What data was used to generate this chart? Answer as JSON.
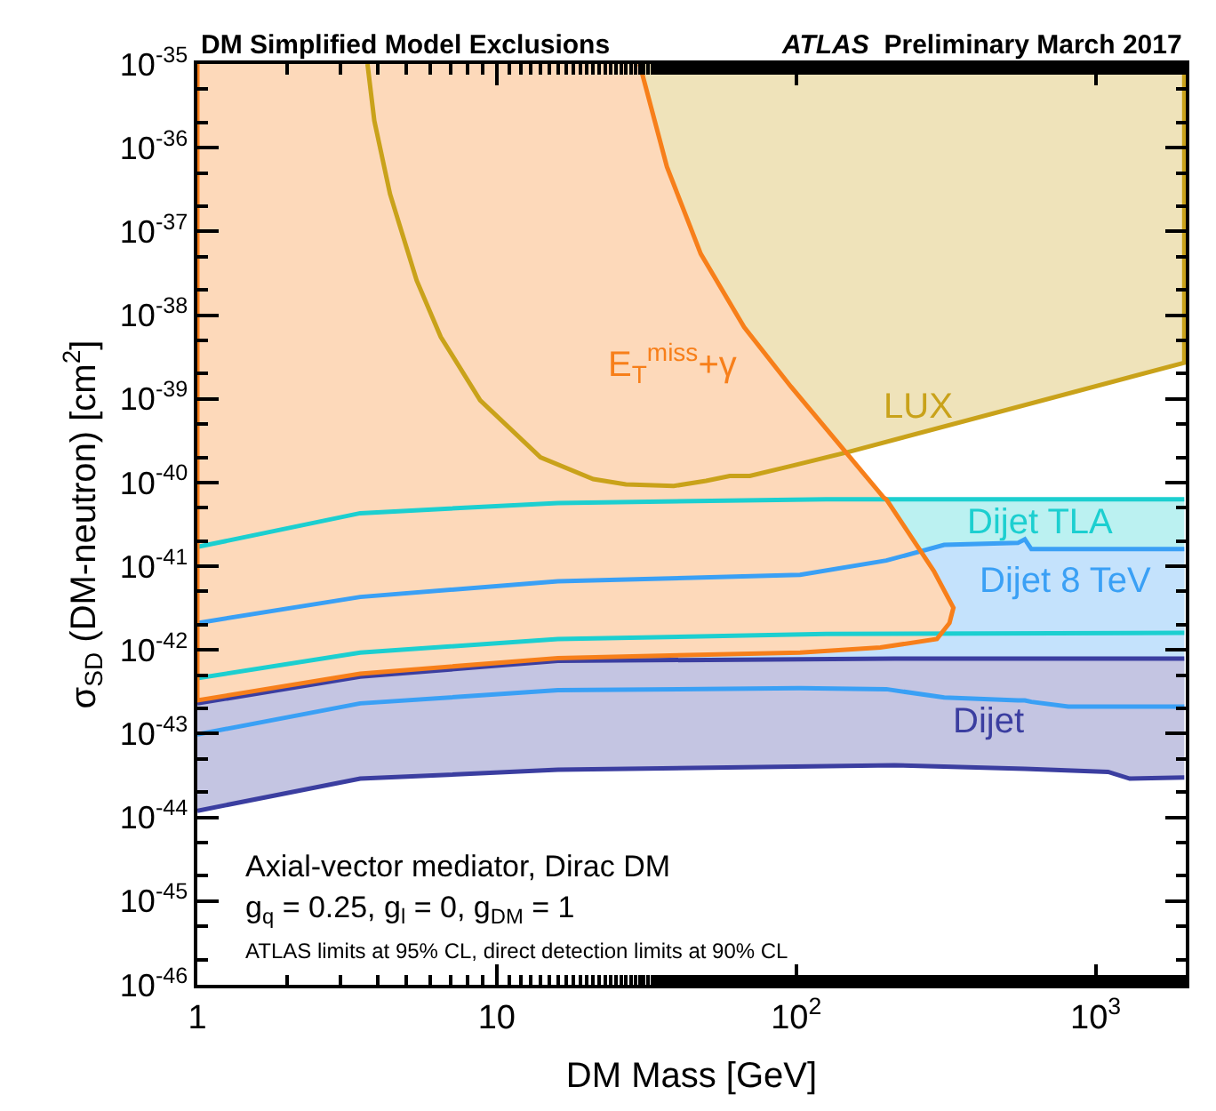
{
  "chart_data": {
    "type": "area",
    "title": "DM Simplified Model Exclusions",
    "subtitle": "ATLAS Preliminary March 2017",
    "xlabel": "DM Mass [GeV]",
    "ylabel": "σ$_{SD}$ (DM-neutron) [cm$^{2}$]",
    "log": "xy",
    "legend": false,
    "xlim": [
      1,
      2000
    ],
    "ylim": [
      1e-46,
      1e-35
    ],
    "xticks": [
      1,
      10,
      {
        "value": 100,
        "label": "10$^{2}$"
      },
      {
        "value": 1000,
        "label": "10$^{3}$"
      }
    ],
    "yticks": [
      {
        "value": 1e-46,
        "label": "10$^{-46}$"
      },
      {
        "value": 1e-45,
        "label": "10$^{-45}$"
      },
      {
        "value": 1e-44,
        "label": "10$^{-44}$"
      },
      {
        "value": 1e-43,
        "label": "10$^{-43}$"
      },
      {
        "value": 1e-42,
        "label": "10$^{-42}$"
      },
      {
        "value": 1e-41,
        "label": "10$^{-41}$"
      },
      {
        "value": 1e-40,
        "label": "10$^{-40}$"
      },
      {
        "value": 1e-39,
        "label": "10$^{-39}$"
      },
      {
        "value": 1e-38,
        "label": "10$^{-38}$"
      },
      {
        "value": 1e-37,
        "label": "10$^{-37}$"
      },
      {
        "value": 1e-36,
        "label": "10$^{-36}$"
      },
      {
        "value": 1e-35,
        "label": "10$^{-35}$"
      }
    ],
    "series": [
      {
        "name": "LUX",
        "color": "#c9a21a",
        "x": [
          3.7,
          3.9,
          4.4,
          5.4,
          6.5,
          8.8,
          14,
          21,
          27,
          39,
          50,
          60,
          70,
          98,
          148,
          1977,
          1977
        ],
        "values": [
          1e-35,
          2.1e-36,
          2.8e-37,
          2.6e-38,
          5.5e-39,
          9.6e-40,
          2e-40,
          1.1e-40,
          9.5e-41,
          9.1e-41,
          1.05e-40,
          1.2e-40,
          1.2e-40,
          1.6e-40,
          2.3e-40,
          2.7e-39,
          1e-35
        ]
      },
      {
        "type": "line",
        "color": "#1ccfd0",
        "x": [
          1,
          3.5,
          16,
          126,
          1977
        ],
        "values": [
          4.6e-43,
          9.3e-43,
          1.35e-42,
          1.55e-42,
          1.6e-42
        ]
      },
      {
        "name": "Dijet TLA",
        "color": "#1ccfd0",
        "x": [
          1,
          3.5,
          16,
          126,
          1977
        ],
        "values": [
          1.7e-41,
          4.3e-41,
          5.7e-41,
          6.3e-41,
          6.3e-41
        ]
      },
      {
        "type": "line",
        "color": "#3aa0f5",
        "x": [
          1,
          3.5,
          16,
          103,
          200,
          312,
          550,
          580,
          610,
          810,
          1977
        ],
        "values": [
          9.8e-44,
          2.3e-43,
          3.3e-43,
          3.5e-43,
          3.4e-43,
          2.7e-43,
          2.5e-43,
          2.5e-43,
          2.4e-43,
          2.1e-43,
          2.1e-43
        ]
      },
      {
        "name": "Dijet 8 TeV",
        "color": "#3aa0f5",
        "x": [
          1,
          3.5,
          16,
          103,
          200,
          312,
          550,
          580,
          610,
          810,
          1977
        ],
        "values": [
          2.1e-42,
          4.3e-42,
          6.6e-42,
          7.9e-42,
          1.17e-41,
          1.8e-41,
          1.9e-41,
          2.1e-41,
          1.6e-41,
          1.6e-41,
          1.6e-41
        ]
      },
      {
        "type": "line",
        "color": "#3b3ea0",
        "x": [
          1,
          3.5,
          16,
          213,
          580,
          1100,
          1300,
          1977
        ],
        "values": [
          1.2e-44,
          2.9e-44,
          3.7e-44,
          4.2e-44,
          3.8e-44,
          3.5e-44,
          2.9e-44,
          3e-44
        ]
      },
      {
        "name": "Dijet",
        "color": "#3b3ea0",
        "x": [
          1,
          3.5,
          16,
          213,
          580,
          1100,
          1300,
          1977
        ],
        "values": [
          2.3e-43,
          4.8e-43,
          7.4e-43,
          7.9e-43,
          7.9e-43,
          7.9e-43,
          7.9e-43,
          7.9e-43
        ]
      },
      {
        "name": "E$_{T}$$^{miss}$+γ",
        "color": "#f77f1a",
        "x": [
          30,
          37,
          48,
          67,
          96,
          148,
          196,
          200,
          288,
          335,
          325,
          295,
          191,
          103,
          16,
          3.5,
          1,
          1
        ],
        "values": [
          1e-35,
          5.9e-37,
          5.4e-38,
          7.2e-39,
          1.4e-39,
          2.2e-40,
          6.6e-41,
          6.3e-41,
          8.8e-42,
          3.2e-42,
          2.1e-42,
          1.35e-42,
          1.07e-42,
          9.3e-43,
          8e-43,
          5.2e-43,
          2.5e-43,
          1e-35
        ]
      }
    ],
    "annotations": [
      "Axial-vector mediator, Dirac DM",
      "g$_{q}$ = 0.25, g$_{l}$ = 0, g$_{DM}$ = 1",
      "ATLAS limits at 95% CL, direct detection limits at 90% CL"
    ]
  }
}
